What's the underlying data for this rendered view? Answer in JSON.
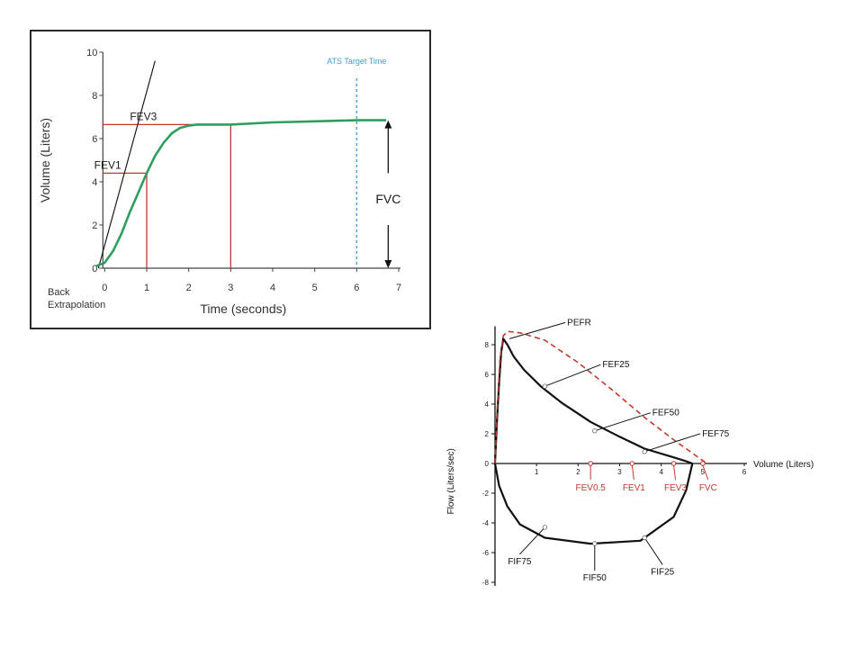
{
  "chart_data": [
    {
      "type": "line",
      "xlabel": "Time (seconds)",
      "ylabel": "Volume (Liters)",
      "xlim": [
        -0.5,
        7
      ],
      "ylim": [
        0,
        10
      ],
      "xticks": [
        "0",
        "1",
        "2",
        "3",
        "4",
        "5",
        "6",
        "7"
      ],
      "yticks": [
        "0",
        "2",
        "4",
        "6",
        "8",
        "10"
      ],
      "grid": false,
      "series": [
        {
          "color": "#2e9e5e",
          "x": [
            -0.2,
            0,
            0.2,
            0.4,
            0.6,
            0.8,
            1.0,
            1.2,
            1.4,
            1.6,
            1.8,
            2.0,
            2.2,
            2.5,
            3.0,
            4.0,
            5.0,
            6.0,
            6.7
          ],
          "y": [
            0.1,
            0.25,
            0.8,
            1.6,
            2.6,
            3.5,
            4.4,
            5.2,
            5.8,
            6.25,
            6.5,
            6.6,
            6.65,
            6.65,
            6.65,
            6.75,
            6.8,
            6.85,
            6.85
          ]
        }
      ],
      "back_extrapolation_line": {
        "x": [
          -0.15,
          1.2
        ],
        "y": [
          0,
          9.6
        ],
        "color": "#1a1a1a"
      },
      "reference_lines": [
        {
          "label": "FEV1",
          "x": 1,
          "y": 4.4,
          "color": "#c0392b"
        },
        {
          "label": "FEV3",
          "x": 3,
          "y": 6.65,
          "color": "#c0392b"
        }
      ],
      "ats_target": {
        "label": "ATS Target Time",
        "x": 6,
        "color": "#3a9fd6"
      },
      "fvc_arrow": {
        "label": "FVC",
        "x": 6.75,
        "y_from": 0,
        "y_to": 6.85
      },
      "annotations": {
        "fev1": "FEV1",
        "fev3": "FEV3",
        "back_extrapolation": [
          "Back",
          "Extrapolation"
        ]
      }
    },
    {
      "type": "line",
      "xlabel": "Volume (Liters)",
      "ylabel": "Flow (Liters/sec)",
      "xlim": [
        0,
        6
      ],
      "ylim": [
        -8,
        9
      ],
      "xticks": [
        "1",
        "2",
        "3",
        "4",
        "5",
        "6"
      ],
      "yticks": [
        "8",
        "6",
        "4",
        "2",
        "0",
        "-2",
        "-4",
        "-6",
        "-8"
      ],
      "grid": false,
      "series": [
        {
          "style": "solid",
          "color": "#111111",
          "x": [
            0,
            0.05,
            0.1,
            0.15,
            0.2,
            0.3,
            0.45,
            0.7,
            1.1,
            1.6,
            2.3,
            3.0,
            3.6,
            4.2,
            4.6,
            4.75
          ],
          "y": [
            0,
            3.0,
            5.5,
            7.5,
            8.4,
            8.0,
            7.2,
            6.3,
            5.2,
            4.1,
            2.8,
            1.8,
            1.0,
            0.5,
            0.15,
            0
          ]
        },
        {
          "style": "solid",
          "color": "#111111",
          "x": [
            0,
            0.1,
            0.3,
            0.6,
            1.2,
            2.3,
            3.5,
            4.3,
            4.6,
            4.75
          ],
          "y": [
            0,
            -1.5,
            -2.9,
            -4.1,
            -5.0,
            -5.4,
            -5.2,
            -3.6,
            -1.8,
            0
          ]
        },
        {
          "style": "dashed",
          "color": "#c0392b",
          "x": [
            0,
            0.05,
            0.12,
            0.2,
            0.3,
            0.6,
            1.2,
            2.0,
            2.8,
            3.6,
            4.3,
            4.8,
            5.1
          ],
          "y": [
            0,
            3.5,
            7.0,
            8.6,
            8.9,
            8.8,
            8.3,
            6.8,
            5.0,
            3.1,
            1.6,
            0.6,
            0
          ]
        }
      ],
      "points": [
        {
          "label": "PEFR",
          "x": 0.35,
          "y": 8.4
        },
        {
          "label": "FEF25",
          "x": 1.2,
          "y": 5.2
        },
        {
          "label": "FEF50",
          "x": 2.4,
          "y": 2.2
        },
        {
          "label": "FEF75",
          "x": 3.6,
          "y": 0.8
        },
        {
          "label": "FIF75",
          "x": 1.2,
          "y": -4.3
        },
        {
          "label": "FIF50",
          "x": 2.4,
          "y": -5.4
        },
        {
          "label": "FIF25",
          "x": 3.6,
          "y": -5.0
        }
      ],
      "volume_markers": [
        {
          "label": "FEV0.5",
          "x": 2.3
        },
        {
          "label": "FEV1",
          "x": 3.3
        },
        {
          "label": "FEV3",
          "x": 4.3
        },
        {
          "label": "FVC",
          "x": 5.0
        }
      ]
    }
  ]
}
